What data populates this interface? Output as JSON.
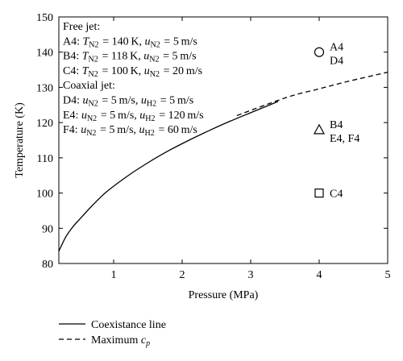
{
  "chart_data": {
    "type": "line",
    "xlabel": "Pressure (MPa)",
    "ylabel": "Temperature (K)",
    "xlim": [
      0.2,
      5
    ],
    "ylim": [
      80,
      150
    ],
    "xticks": [
      1,
      2,
      3,
      4,
      5
    ],
    "yticks": [
      80,
      90,
      100,
      110,
      120,
      130,
      140,
      150
    ],
    "grid": false,
    "series": [
      {
        "name": "Coexistance line",
        "style": "solid",
        "points": [
          [
            0.2,
            83.5
          ],
          [
            0.3,
            87.5
          ],
          [
            0.4,
            90.3
          ],
          [
            0.5,
            92.5
          ],
          [
            0.7,
            96.7
          ],
          [
            0.9,
            100.4
          ],
          [
            1.2,
            104.8
          ],
          [
            1.5,
            108.6
          ],
          [
            1.8,
            112.0
          ],
          [
            2.1,
            115.0
          ],
          [
            2.4,
            117.8
          ],
          [
            2.7,
            120.4
          ],
          [
            3.0,
            122.8
          ],
          [
            3.2,
            124.4
          ],
          [
            3.4,
            126.0
          ]
        ]
      },
      {
        "name": "Maximum c_p",
        "style": "dashed",
        "points": [
          [
            2.8,
            122.0
          ],
          [
            3.2,
            124.9
          ],
          [
            3.6,
            127.6
          ],
          [
            4.0,
            129.6
          ],
          [
            4.4,
            131.6
          ],
          [
            5.0,
            134.3
          ]
        ]
      }
    ],
    "markers": [
      {
        "shape": "circle",
        "x": 4,
        "y": 140,
        "labels": [
          "A4",
          "D4"
        ]
      },
      {
        "shape": "triangle",
        "x": 4,
        "y": 118,
        "labels": [
          "B4",
          "E4, F4"
        ]
      },
      {
        "shape": "square",
        "x": 4,
        "y": 100,
        "labels": [
          "C4"
        ]
      }
    ],
    "legend": {
      "placement": "below",
      "entries": [
        {
          "style": "solid",
          "label": "Coexistance line"
        },
        {
          "style": "dashed",
          "label": "Maximum",
          "label_math": "c",
          "label_sub": "p"
        }
      ]
    },
    "annotation": {
      "placement": "top-left",
      "free_heading": "Free jet:",
      "coax_heading": "Coaxial jet:",
      "n2": "N",
      "n2_sub": "2",
      "h2": "H",
      "h2_sub": "2",
      "free_cases": [
        {
          "id": "A4",
          "T": "140",
          "u": "5"
        },
        {
          "id": "B4",
          "T": "118",
          "u": "5"
        },
        {
          "id": "C4",
          "T": "100",
          "u": "20"
        }
      ],
      "coax_cases": [
        {
          "id": "D4",
          "uN2": "5",
          "uH2": "5"
        },
        {
          "id": "E4",
          "uN2": "5",
          "uH2": "120"
        },
        {
          "id": "F4",
          "uN2": "5",
          "uH2": "60"
        }
      ]
    }
  }
}
